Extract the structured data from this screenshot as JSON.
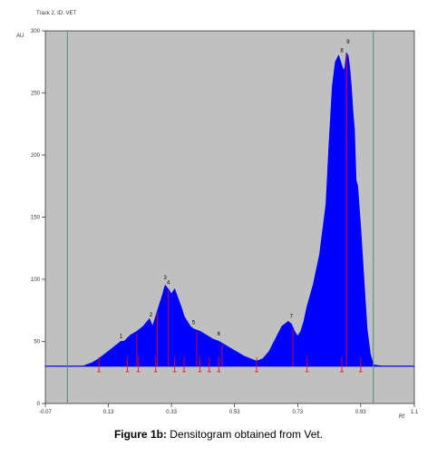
{
  "chart_data": {
    "type": "area",
    "track_label": "Track 2, ID: VET",
    "ylabel": "AU",
    "xlabel": "Rf",
    "xlim": [
      -0.07,
      1.1
    ],
    "ylim": [
      0,
      300
    ],
    "xticks": [
      -0.07,
      0.13,
      0.33,
      0.53,
      0.73,
      0.93,
      1.1
    ],
    "xtick_labels": [
      "-0.07",
      "0.13",
      "0.33",
      "0.53",
      "0.73",
      "0.93",
      "1.1"
    ],
    "yticks": [
      0,
      50,
      100,
      150,
      200,
      250,
      300
    ],
    "ytick_labels": [
      "0",
      "50",
      "100",
      "150",
      "200",
      "250",
      "300"
    ],
    "baseline": 30,
    "markers_x": [
      0.0,
      0.97
    ],
    "series": [
      {
        "x": [
          -0.07,
          0.0,
          0.05,
          0.08,
          0.1,
          0.12,
          0.13,
          0.15,
          0.17,
          0.18,
          0.2,
          0.22,
          0.24,
          0.26,
          0.27,
          0.28,
          0.29,
          0.3,
          0.31,
          0.32,
          0.33,
          0.34,
          0.35,
          0.36,
          0.37,
          0.38,
          0.39,
          0.4,
          0.42,
          0.44,
          0.46,
          0.48,
          0.5,
          0.52,
          0.54,
          0.56,
          0.58,
          0.6,
          0.62,
          0.64,
          0.66,
          0.68,
          0.7,
          0.71,
          0.72,
          0.73,
          0.74,
          0.75,
          0.76,
          0.78,
          0.8,
          0.82,
          0.83,
          0.84,
          0.85,
          0.86,
          0.87,
          0.875,
          0.88,
          0.885,
          0.89,
          0.895,
          0.9,
          0.905,
          0.91,
          0.915,
          0.92,
          0.93,
          0.94,
          0.95,
          0.96,
          0.97,
          1.0,
          1.1
        ],
        "values": [
          30,
          30,
          30,
          33,
          36,
          40,
          42,
          46,
          50,
          50,
          55,
          58,
          62,
          68,
          62,
          70,
          78,
          86,
          95,
          92,
          88,
          92,
          85,
          78,
          70,
          66,
          62,
          60,
          58,
          55,
          52,
          50,
          47,
          44,
          41,
          38,
          36,
          34,
          36,
          42,
          52,
          62,
          66,
          64,
          58,
          54,
          58,
          66,
          78,
          96,
          120,
          160,
          210,
          255,
          275,
          280,
          272,
          268,
          270,
          282,
          280,
          270,
          255,
          235,
          220,
          180,
          175,
          140,
          100,
          60,
          40,
          31,
          30,
          30
        ]
      }
    ],
    "peak_labels": [
      {
        "label": "1",
        "x": 0.17,
        "y": 50
      },
      {
        "label": "2",
        "x": 0.265,
        "y": 67
      },
      {
        "label": "3",
        "x": 0.31,
        "y": 97
      },
      {
        "label": "4",
        "x": 0.32,
        "y": 93
      },
      {
        "label": "5",
        "x": 0.4,
        "y": 61
      },
      {
        "label": "6",
        "x": 0.48,
        "y": 52
      },
      {
        "label": "7",
        "x": 0.71,
        "y": 66
      },
      {
        "label": "8",
        "x": 0.87,
        "y": 280
      },
      {
        "label": "9",
        "x": 0.89,
        "y": 287
      }
    ],
    "peak_lines_x": [
      0.22,
      0.285,
      0.32,
      0.41,
      0.49,
      0.715,
      0.885
    ],
    "integration_marks_x": [
      0.1,
      0.19,
      0.225,
      0.28,
      0.34,
      0.37,
      0.42,
      0.45,
      0.48,
      0.6,
      0.76,
      0.87,
      0.93
    ]
  },
  "caption": {
    "label": "Figure 1b:",
    "text": " Densitogram obtained from Vet."
  },
  "colors": {
    "plot_bg": "#c0c0c0",
    "fill": "#0000ff",
    "baseline": "#0000cc",
    "marker": "#4f8f6f",
    "peak_line": "#ff0000"
  }
}
